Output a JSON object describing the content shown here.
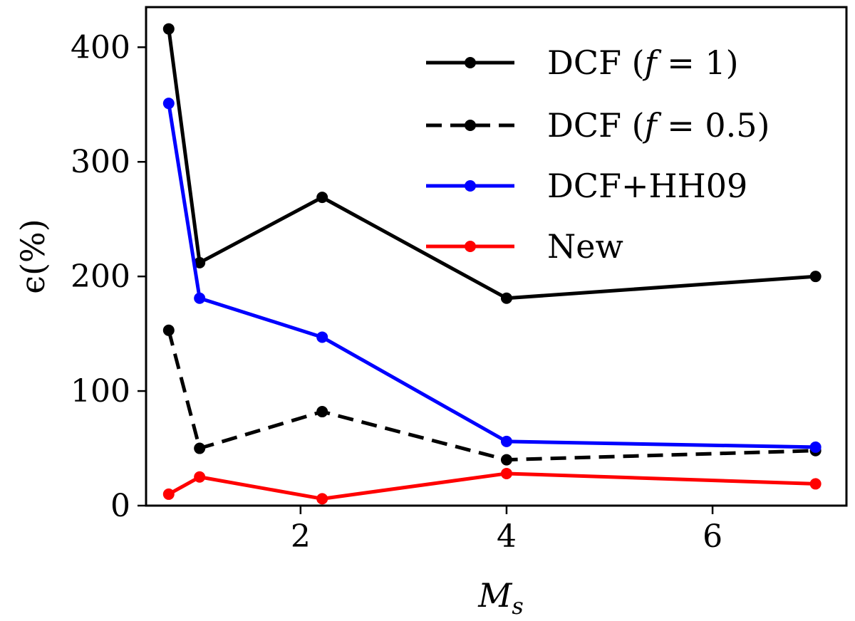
{
  "chart_data": {
    "type": "line",
    "title": "",
    "xlabel_base": "M",
    "xlabel_sub": "s",
    "ylabel": "ϵ(%)",
    "xlim": [
      0.5,
      7.3
    ],
    "ylim": [
      0,
      435
    ],
    "xticks": [
      2,
      4,
      6
    ],
    "yticks": [
      0,
      100,
      200,
      300,
      400
    ],
    "x": [
      0.72,
      1.02,
      2.21,
      4.0,
      7.0
    ],
    "series": [
      {
        "name": "DCF (f = 1)",
        "values": [
          416,
          212,
          269,
          181,
          200
        ],
        "color": "#000000",
        "dashed": false
      },
      {
        "name": "DCF (f = 0.5)",
        "values": [
          153,
          50,
          82,
          40,
          48
        ],
        "color": "#000000",
        "dashed": true
      },
      {
        "name": "DCF+HH09",
        "values": [
          351,
          181,
          147,
          56,
          51
        ],
        "color": "#0000ff",
        "dashed": false
      },
      {
        "name": "New",
        "values": [
          10,
          25,
          6,
          28,
          19
        ],
        "color": "#ff0000",
        "dashed": false
      }
    ],
    "legend": {
      "position": "top-right",
      "entries": [
        {
          "prefix": "DCF (",
          "var": "f",
          "suffix": " = 1)"
        },
        {
          "prefix": "DCF (",
          "var": "f",
          "suffix": " = 0.5)"
        },
        {
          "prefix": "DCF+HH09",
          "var": "",
          "suffix": ""
        },
        {
          "prefix": "New",
          "var": "",
          "suffix": ""
        }
      ]
    },
    "grid": false
  }
}
